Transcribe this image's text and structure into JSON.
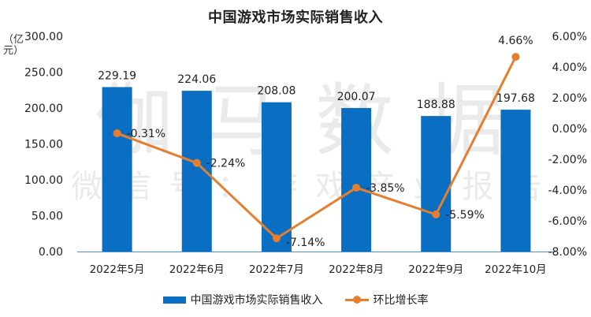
{
  "chart_data": {
    "type": "bar",
    "title": "中国游戏市场实际销售收入",
    "xlabel": "",
    "ylabel": "（亿元）",
    "categories": [
      "2022年5月",
      "2022年6月",
      "2022年7月",
      "2022年8月",
      "2022年9月",
      "2022年10月"
    ],
    "series": [
      {
        "name": "中国游戏市场实际销售收入",
        "type": "bar",
        "axis": "left",
        "color": "#0A6EC2",
        "values": [
          229.19,
          224.06,
          208.08,
          200.07,
          188.88,
          197.68
        ],
        "labels": [
          "229.19",
          "224.06",
          "208.08",
          "200.07",
          "188.88",
          "197.68"
        ]
      },
      {
        "name": "环比增长率",
        "type": "line",
        "axis": "right",
        "color": "#E57E2E",
        "values": [
          -0.31,
          -2.24,
          -7.14,
          -3.85,
          -5.59,
          4.66
        ],
        "labels": [
          "-0.31%",
          "-2.24%",
          "-7.14%",
          "-3.85%",
          "-5.59%",
          "4.66%"
        ]
      }
    ],
    "ylim": [
      0,
      300
    ],
    "y2lim": [
      -8,
      6
    ],
    "left_ticks": [
      "300.00",
      "250.00",
      "200.00",
      "150.00",
      "100.00",
      "50.00",
      "0.00"
    ],
    "right_ticks": [
      "6.00%",
      "4.00%",
      "2.00%",
      "0.00%",
      "-2.00%",
      "-4.00%",
      "-6.00%",
      "-8.00%"
    ],
    "grid": false,
    "legend_position": "bottom"
  },
  "watermark": {
    "line1": "伽马数据",
    "line2": "微信号：游戏产业报告"
  },
  "legend": {
    "bar_label": "中国游戏市场实际销售收入",
    "line_label": "环比增长率"
  },
  "unit_label": "（亿元）"
}
